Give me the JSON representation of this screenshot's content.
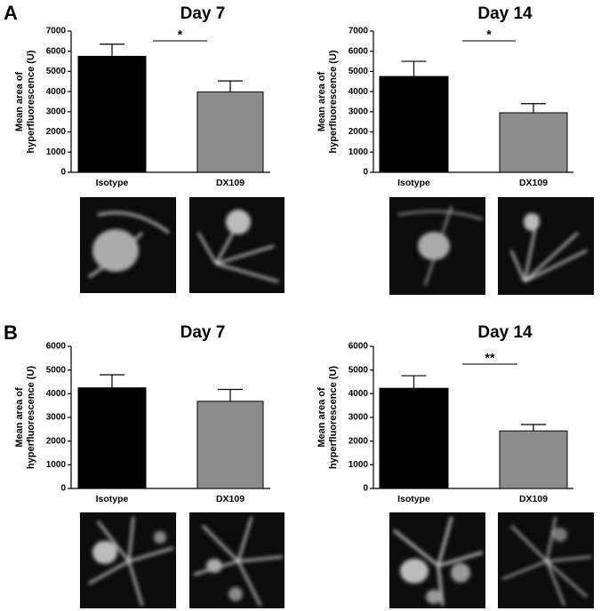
{
  "panel_labels": [
    "A",
    "B"
  ],
  "chart_data": [
    {
      "type": "bar",
      "title": "Day 7",
      "ylabel": [
        "Mean area of",
        "hyperfluorescence (U)"
      ],
      "categories": [
        "Isotype",
        "DX109"
      ],
      "values": [
        5750,
        3980
      ],
      "errors": [
        600,
        550
      ],
      "colors": [
        "#000000",
        "#8c8c8c"
      ],
      "ylim": [
        0,
        7000
      ],
      "yticks": [
        0,
        1000,
        2000,
        3000,
        4000,
        5000,
        6000,
        7000
      ],
      "annotation": "*"
    },
    {
      "type": "bar",
      "title": "Day 14",
      "ylabel": [
        "Mean area of",
        "hyperfluorescence (U)"
      ],
      "categories": [
        "Isotype",
        "DX109"
      ],
      "values": [
        4750,
        2950
      ],
      "errors": [
        750,
        450
      ],
      "colors": [
        "#000000",
        "#8c8c8c"
      ],
      "ylim": [
        0,
        7000
      ],
      "yticks": [
        0,
        1000,
        2000,
        3000,
        4000,
        5000,
        6000,
        7000
      ],
      "annotation": "*"
    },
    {
      "type": "bar",
      "title": "Day 7",
      "ylabel": [
        "Mean area of",
        "hyperfluorescence (U)"
      ],
      "categories": [
        "Isotype",
        "DX109"
      ],
      "values": [
        4250,
        3680
      ],
      "errors": [
        550,
        500
      ],
      "colors": [
        "#000000",
        "#8c8c8c"
      ],
      "ylim": [
        0,
        6000
      ],
      "yticks": [
        0,
        1000,
        2000,
        3000,
        4000,
        5000,
        6000
      ]
    },
    {
      "type": "bar",
      "title": "Day 14",
      "ylabel": [
        "Mean area of",
        "hyperfluorescence (U)"
      ],
      "categories": [
        "Isotype",
        "DX109"
      ],
      "values": [
        4230,
        2430
      ],
      "errors": [
        530,
        270
      ],
      "colors": [
        "#000000",
        "#8c8c8c"
      ],
      "ylim": [
        0,
        6000
      ],
      "yticks": [
        0,
        1000,
        2000,
        3000,
        4000,
        5000,
        6000
      ],
      "annotation": "**"
    }
  ]
}
